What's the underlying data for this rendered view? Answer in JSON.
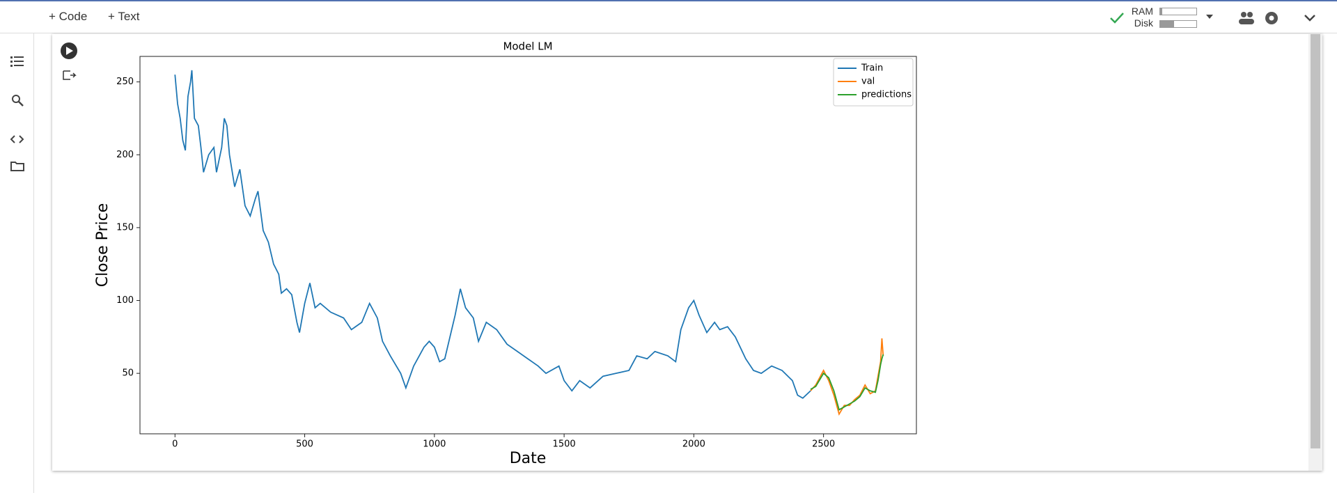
{
  "toolbar": {
    "buttons": [
      "Code",
      "Text"
    ],
    "ram_label": "RAM",
    "disk_label": "Disk"
  },
  "chart_data": {
    "type": "line",
    "title": "Model LM",
    "x_label": "Date",
    "y_label": "Close Price",
    "xlim": [
      -135,
      2858
    ],
    "ylim": [
      8.5,
      267.5
    ],
    "xticks": [
      0,
      500,
      1000,
      1500,
      2000,
      2500
    ],
    "yticks": [
      50,
      100,
      150,
      200,
      250
    ],
    "legend": "upper right",
    "grid": false,
    "series": [
      {
        "name": "Train",
        "color": "#1f77b4",
        "x": [
          0,
          10,
          20,
          30,
          40,
          50,
          60,
          65,
          75,
          90,
          100,
          110,
          130,
          150,
          160,
          180,
          190,
          200,
          210,
          230,
          250,
          270,
          290,
          310,
          320,
          340,
          360,
          380,
          400,
          410,
          430,
          450,
          470,
          480,
          500,
          520,
          540,
          560,
          600,
          650,
          680,
          720,
          750,
          780,
          800,
          830,
          870,
          890,
          920,
          960,
          980,
          1000,
          1020,
          1040,
          1060,
          1080,
          1100,
          1120,
          1150,
          1170,
          1200,
          1240,
          1280,
          1320,
          1360,
          1400,
          1430,
          1480,
          1500,
          1530,
          1560,
          1600,
          1650,
          1700,
          1750,
          1780,
          1820,
          1850,
          1900,
          1930,
          1950,
          1980,
          2000,
          2020,
          2050,
          2080,
          2100,
          2130,
          2160,
          2200,
          2230,
          2260,
          2300,
          2340,
          2380,
          2400,
          2420,
          2450
        ],
        "values": [
          255,
          235,
          225,
          210,
          203,
          240,
          250,
          258,
          225,
          220,
          205,
          188,
          200,
          205,
          188,
          205,
          225,
          220,
          200,
          178,
          190,
          165,
          158,
          170,
          175,
          148,
          140,
          125,
          118,
          105,
          108,
          104,
          85,
          78,
          98,
          112,
          95,
          98,
          92,
          88,
          80,
          85,
          98,
          88,
          72,
          62,
          50,
          40,
          55,
          68,
          72,
          68,
          58,
          60,
          75,
          90,
          108,
          95,
          88,
          72,
          85,
          80,
          70,
          65,
          60,
          55,
          50,
          55,
          45,
          38,
          45,
          40,
          48,
          50,
          52,
          62,
          60,
          65,
          62,
          58,
          80,
          95,
          100,
          90,
          78,
          85,
          80,
          82,
          75,
          60,
          52,
          50,
          55,
          52,
          45,
          35,
          33,
          38
        ]
      },
      {
        "name": "val",
        "color": "#ff7f0e",
        "x": [
          2450,
          2470,
          2500,
          2520,
          2540,
          2560,
          2580,
          2600,
          2620,
          2640,
          2660,
          2680,
          2700,
          2710,
          2720,
          2725,
          2730
        ],
        "values": [
          38,
          42,
          52,
          45,
          35,
          22,
          28,
          28,
          32,
          35,
          42,
          36,
          38,
          48,
          58,
          74,
          62
        ]
      },
      {
        "name": "predictions",
        "color": "#2ca02c",
        "x": [
          2450,
          2470,
          2500,
          2520,
          2540,
          2560,
          2580,
          2600,
          2620,
          2640,
          2660,
          2680,
          2700,
          2710,
          2720,
          2725,
          2730
        ],
        "values": [
          39,
          41,
          50,
          47,
          38,
          25,
          27,
          29,
          31,
          34,
          40,
          38,
          37,
          45,
          56,
          60,
          63
        ]
      }
    ]
  }
}
